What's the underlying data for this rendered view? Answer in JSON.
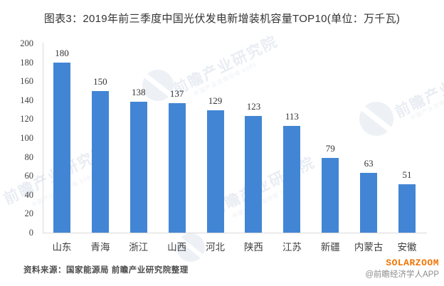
{
  "title": "图表3：2019年前三季度中国光伏发电新增装机容量TOP10(单位：万千瓦)",
  "chart_data": {
    "type": "bar",
    "title": "图表3：2019年前三季度中国光伏发电新增装机容量TOP10(单位：万千瓦)",
    "categories": [
      "山东",
      "青海",
      "浙江",
      "山西",
      "河北",
      "陕西",
      "江苏",
      "新疆",
      "内蒙古",
      "安徽"
    ],
    "values": [
      180,
      150,
      138,
      137,
      129,
      123,
      113,
      79,
      63,
      51
    ],
    "xlabel": "",
    "ylabel": "",
    "ylim": [
      0,
      200
    ],
    "ytick_step": 20,
    "grid": false,
    "legend": "none",
    "bar_color": "#4285d5",
    "axis_color": "#d9d9d9"
  },
  "watermark": {
    "text": "前瞻产业研究院",
    "subtext": "中国产业咨询领域 8399"
  },
  "footer": {
    "source": "资料来源：国家能源局 前瞻产业研究院整理",
    "brand": "SOLARZOOM",
    "brand_color": "#f07300",
    "credit": "@前瞻经济学人APP"
  }
}
